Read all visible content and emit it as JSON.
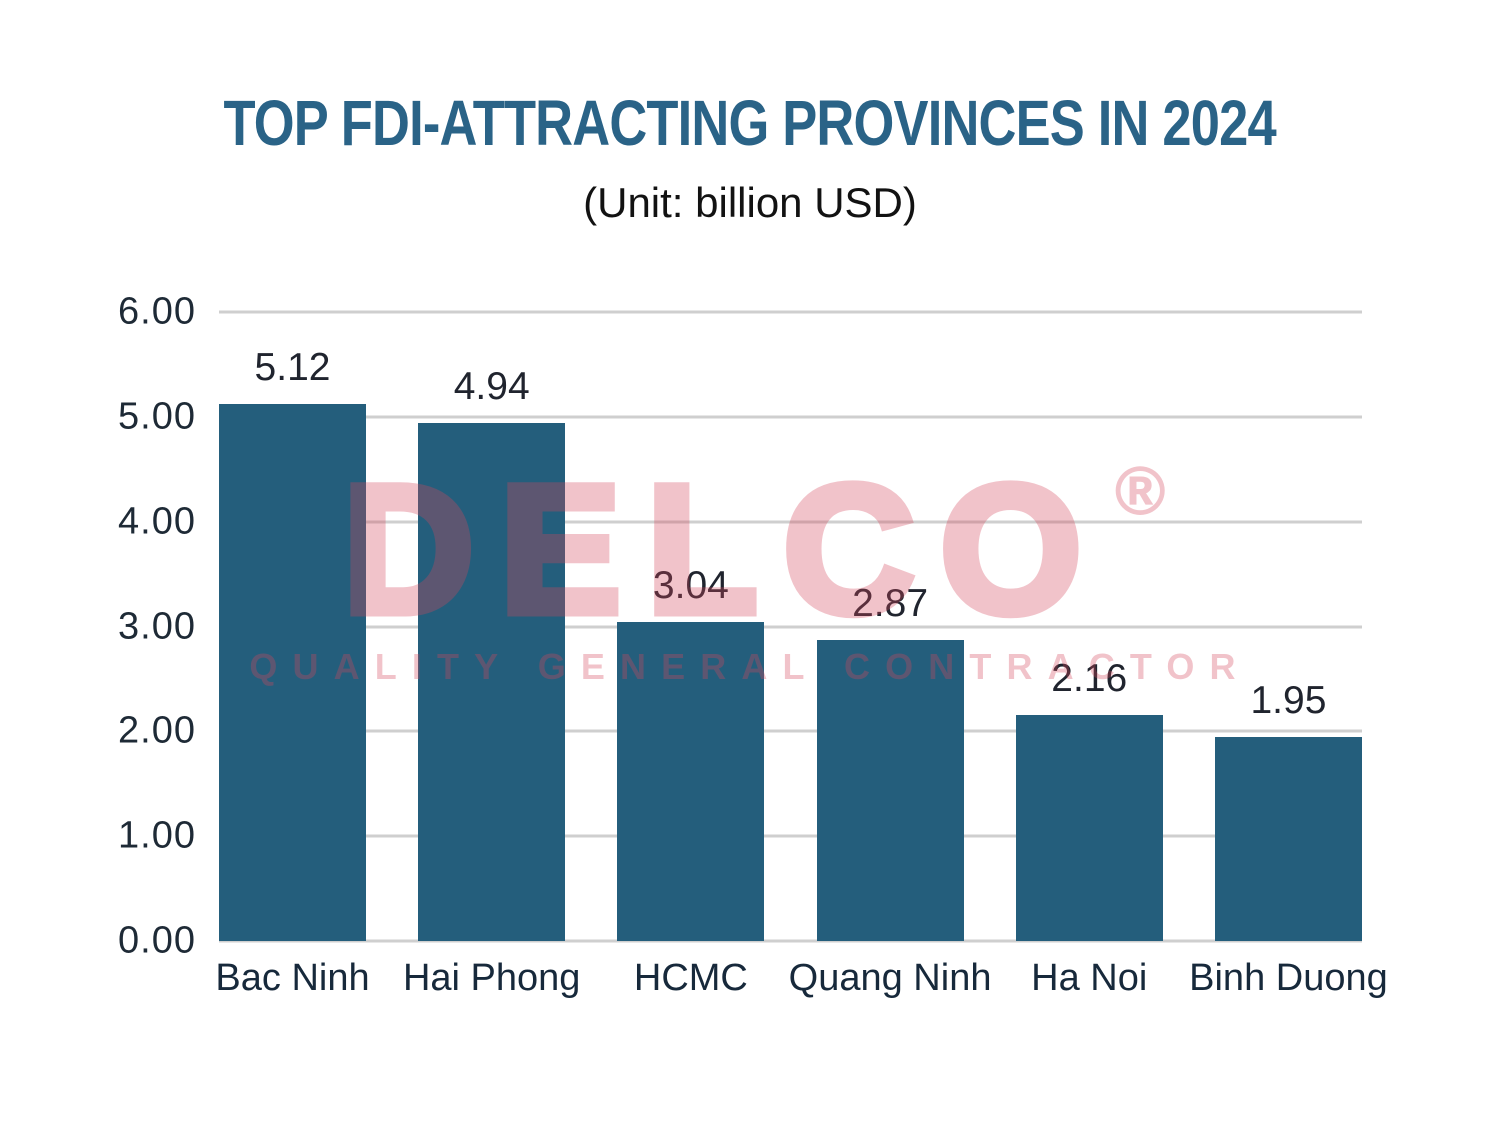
{
  "page": {
    "background": "#ffffff"
  },
  "header": {
    "title": "TOP FDI-ATTRACTING PROVINCES IN 2024",
    "subtitle": "(Unit: billion USD)"
  },
  "watermark": {
    "brand": "DELCO",
    "registered_mark": "®",
    "tagline": "QUALITY GENERAL CONTRACTOR",
    "color": "#d5485c",
    "opacity": 0.32
  },
  "colors": {
    "title": "#2a6387",
    "subtitle": "#121212",
    "bar": "#245e7c",
    "gridline": "#cfcfcf",
    "y_tick_label": "#1e2a36",
    "x_axis_label": "#17293b",
    "value_label": "#20242e",
    "background": "#ffffff"
  },
  "chart_data": {
    "type": "bar",
    "title": "TOP FDI-ATTRACTING PROVINCES IN 2024",
    "subtitle": "(Unit: billion USD)",
    "unit": "billion USD",
    "categories": [
      "Bac Ninh",
      "Hai Phong",
      "HCMC",
      "Quang Ninh",
      "Ha Noi",
      "Binh Duong"
    ],
    "values": [
      5.12,
      4.94,
      3.04,
      2.87,
      2.16,
      1.95
    ],
    "value_labels": [
      "5.12",
      "4.94",
      "3.04",
      "2.87",
      "2.16",
      "1.95"
    ],
    "xlabel": "",
    "ylabel": "",
    "ylim": [
      0,
      6
    ],
    "ytick_step": 1.0,
    "yticks_top_to_bottom": [
      "6.00",
      "5.00",
      "4.00",
      "3.00",
      "2.00",
      "1.00",
      "0.00"
    ],
    "grid": true,
    "legend": false,
    "bar_color": "#245e7c",
    "gridline_color": "#cfcfcf"
  }
}
